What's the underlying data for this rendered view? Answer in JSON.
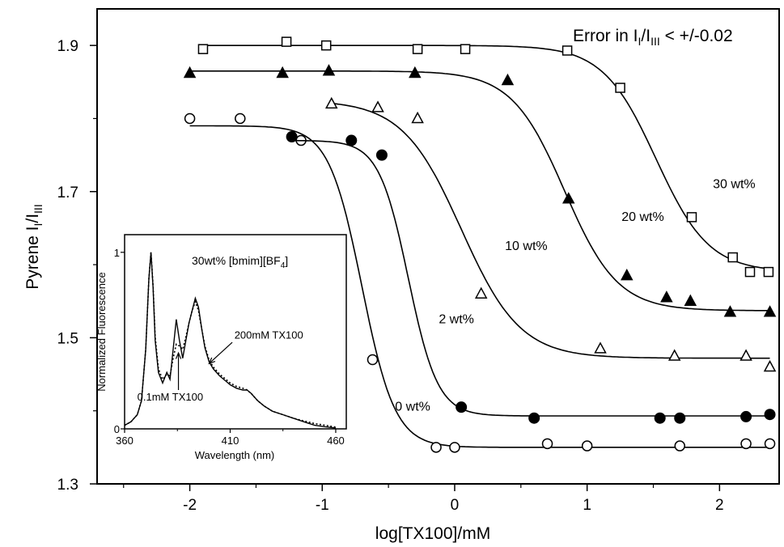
{
  "chart_data": [
    {
      "type": "scatter",
      "xlabel": "log[TX100]/mM",
      "ylabel": {
        "main": "Pyrene I",
        "sub1": "I",
        "mid": "/I",
        "sub2": "III"
      },
      "annotation": {
        "main": "Error in I",
        "sub1": "I",
        "mid": "/I",
        "sub2": "III",
        "tail": " < +/-0.02"
      },
      "xlim": [
        -2.7,
        2.45
      ],
      "ylim": [
        1.3,
        1.95
      ],
      "xticks": [
        -2,
        -1,
        0,
        1,
        2
      ],
      "xtick_labels": [
        "-2",
        "-1",
        "0",
        "1",
        "2"
      ],
      "yticks": [
        1.3,
        1.5,
        1.7,
        1.9
      ],
      "ytick_labels": [
        "1.3",
        "1.5",
        "1.7",
        "1.9"
      ],
      "series": [
        {
          "name": "0 wt%",
          "marker": "open-circle",
          "points": [
            [
              -2.0,
              1.8
            ],
            [
              -1.62,
              1.8
            ],
            [
              -1.16,
              1.77
            ],
            [
              -0.62,
              1.47
            ],
            [
              -0.14,
              1.35
            ],
            [
              0.0,
              1.35
            ],
            [
              0.7,
              1.355
            ],
            [
              1.0,
              1.352
            ],
            [
              1.7,
              1.352
            ],
            [
              2.2,
              1.355
            ],
            [
              2.38,
              1.355
            ]
          ],
          "fit": {
            "top": 1.79,
            "bottom": 1.35,
            "x0": -0.7,
            "k": 8
          },
          "label_pos": [
            -0.45,
            1.4
          ]
        },
        {
          "name": "2 wt%",
          "marker": "filled-circle",
          "points": [
            [
              -1.23,
              1.775
            ],
            [
              -0.78,
              1.77
            ],
            [
              -0.55,
              1.75
            ],
            [
              0.05,
              1.405
            ],
            [
              0.6,
              1.39
            ],
            [
              1.55,
              1.39
            ],
            [
              1.7,
              1.39
            ],
            [
              2.2,
              1.392
            ],
            [
              2.38,
              1.395
            ]
          ],
          "fit": {
            "top": 1.77,
            "bottom": 1.393,
            "x0": -0.35,
            "k": 9
          },
          "label_pos": [
            -0.12,
            1.52
          ]
        },
        {
          "name": "10 wt%",
          "marker": "open-triangle",
          "points": [
            [
              -0.93,
              1.82
            ],
            [
              -0.58,
              1.815
            ],
            [
              -0.28,
              1.8
            ],
            [
              0.2,
              1.56
            ],
            [
              1.1,
              1.485
            ],
            [
              1.66,
              1.475
            ],
            [
              2.2,
              1.475
            ],
            [
              2.38,
              1.46
            ]
          ],
          "fit": {
            "top": 1.825,
            "bottom": 1.472,
            "x0": 0.05,
            "k": 4.5
          },
          "label_pos": [
            0.38,
            1.62
          ]
        },
        {
          "name": "20 wt%",
          "marker": "filled-triangle",
          "points": [
            [
              -2.0,
              1.862
            ],
            [
              -1.3,
              1.862
            ],
            [
              -0.95,
              1.865
            ],
            [
              -0.3,
              1.862
            ],
            [
              0.4,
              1.852
            ],
            [
              0.86,
              1.69
            ],
            [
              1.3,
              1.585
            ],
            [
              1.6,
              1.555
            ],
            [
              1.78,
              1.55
            ],
            [
              2.08,
              1.535
            ],
            [
              2.38,
              1.535
            ]
          ],
          "fit": {
            "top": 1.865,
            "bottom": 1.537,
            "x0": 0.83,
            "k": 5
          },
          "label_pos": [
            1.26,
            1.66
          ]
        },
        {
          "name": "30 wt%",
          "marker": "open-square",
          "points": [
            [
              -1.9,
              1.895
            ],
            [
              -1.27,
              1.905
            ],
            [
              -0.97,
              1.9
            ],
            [
              -0.28,
              1.895
            ],
            [
              0.08,
              1.895
            ],
            [
              0.85,
              1.893
            ],
            [
              1.25,
              1.842
            ],
            [
              1.79,
              1.665
            ],
            [
              2.1,
              1.61
            ],
            [
              2.23,
              1.59
            ],
            [
              2.37,
              1.59
            ]
          ],
          "fit": {
            "top": 1.9,
            "bottom": 1.59,
            "x0": 1.52,
            "k": 5
          },
          "label_pos": [
            1.95,
            1.705
          ]
        }
      ]
    },
    {
      "type": "line",
      "title": {
        "main": "30wt% [bmim][BF",
        "sub": "4",
        "tail": "]"
      },
      "xlabel": "Wavelength (nm)",
      "ylabel": "Normalized Fluorescence",
      "xlim": [
        360,
        465
      ],
      "ylim": [
        0,
        1.1
      ],
      "xticks": [
        360,
        410,
        460
      ],
      "xtick_labels": [
        "360",
        "410",
        "460"
      ],
      "yticks": [
        0,
        1
      ],
      "ytick_labels": [
        "0",
        "1"
      ],
      "series": [
        {
          "name": "0.1mM TX100",
          "style": "solid",
          "x": [
            360,
            363,
            366,
            368,
            370,
            371.5,
            372.5,
            373.5,
            374.5,
            376,
            378,
            380,
            381.5,
            383,
            384.5,
            386,
            387.5,
            389,
            390.5,
            392,
            393.5,
            395,
            396.5,
            398,
            400,
            402,
            405,
            408,
            410,
            413,
            416,
            418,
            420,
            423,
            426,
            430,
            435,
            440,
            445,
            450,
            455,
            460
          ],
          "y": [
            0.02,
            0.04,
            0.08,
            0.16,
            0.45,
            0.85,
            1.0,
            0.8,
            0.5,
            0.32,
            0.26,
            0.32,
            0.28,
            0.45,
            0.62,
            0.5,
            0.4,
            0.5,
            0.6,
            0.67,
            0.74,
            0.69,
            0.57,
            0.46,
            0.38,
            0.34,
            0.3,
            0.27,
            0.25,
            0.23,
            0.22,
            0.22,
            0.2,
            0.16,
            0.13,
            0.1,
            0.08,
            0.06,
            0.04,
            0.02,
            0.012,
            0.005
          ]
        },
        {
          "name": "200mM TX100",
          "style": "dotted",
          "x": [
            360,
            363,
            366,
            368,
            370,
            371.5,
            372.5,
            373.5,
            374.5,
            376,
            378,
            380,
            381.5,
            383,
            384.5,
            386,
            387.5,
            389,
            390.5,
            392,
            393.5,
            395,
            396.5,
            398,
            400,
            402,
            405,
            408,
            410,
            413,
            416,
            418,
            420,
            423,
            426,
            430,
            435,
            440,
            445,
            450,
            455,
            460
          ],
          "y": [
            0.02,
            0.04,
            0.08,
            0.16,
            0.45,
            0.85,
            1.0,
            0.81,
            0.52,
            0.34,
            0.28,
            0.31,
            0.3,
            0.4,
            0.48,
            0.47,
            0.45,
            0.52,
            0.6,
            0.67,
            0.72,
            0.67,
            0.57,
            0.47,
            0.39,
            0.35,
            0.31,
            0.28,
            0.26,
            0.24,
            0.23,
            0.22,
            0.2,
            0.16,
            0.13,
            0.1,
            0.08,
            0.06,
            0.045,
            0.03,
            0.02,
            0.01
          ]
        }
      ],
      "annotations": [
        {
          "text": "200mM TX100",
          "arrow_from": [
            411,
            0.49
          ],
          "arrow_to": [
            400,
            0.37
          ],
          "text_at": [
            412,
            0.51
          ]
        },
        {
          "text": "0.1mM TX100",
          "arrow_from": [
            385.5,
            0.22
          ],
          "arrow_to": [
            385.5,
            0.43
          ],
          "text_at": [
            366,
            0.16
          ]
        }
      ]
    }
  ]
}
